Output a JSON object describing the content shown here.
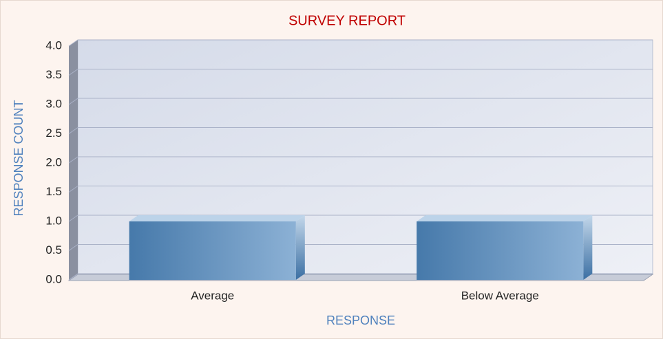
{
  "chart_data": {
    "type": "bar3d",
    "title": "SURVEY REPORT",
    "x_label": "RESPONSE",
    "y_label": "RESPONSE COUNT",
    "categories": [
      "Average",
      "Below Average"
    ],
    "values": [
      1,
      1
    ],
    "color": "#4a7eb0",
    "ylim": [
      0,
      4
    ],
    "yticks": [
      {
        "value": 0,
        "label": "0.0"
      },
      0.5,
      {
        "value": 1,
        "label": "1.0"
      },
      1.5,
      {
        "value": 2,
        "label": "2.0"
      },
      2.5,
      {
        "value": 3,
        "label": "3.0"
      },
      3.5,
      {
        "value": 4,
        "label": "4.0"
      }
    ],
    "grid": true
  }
}
